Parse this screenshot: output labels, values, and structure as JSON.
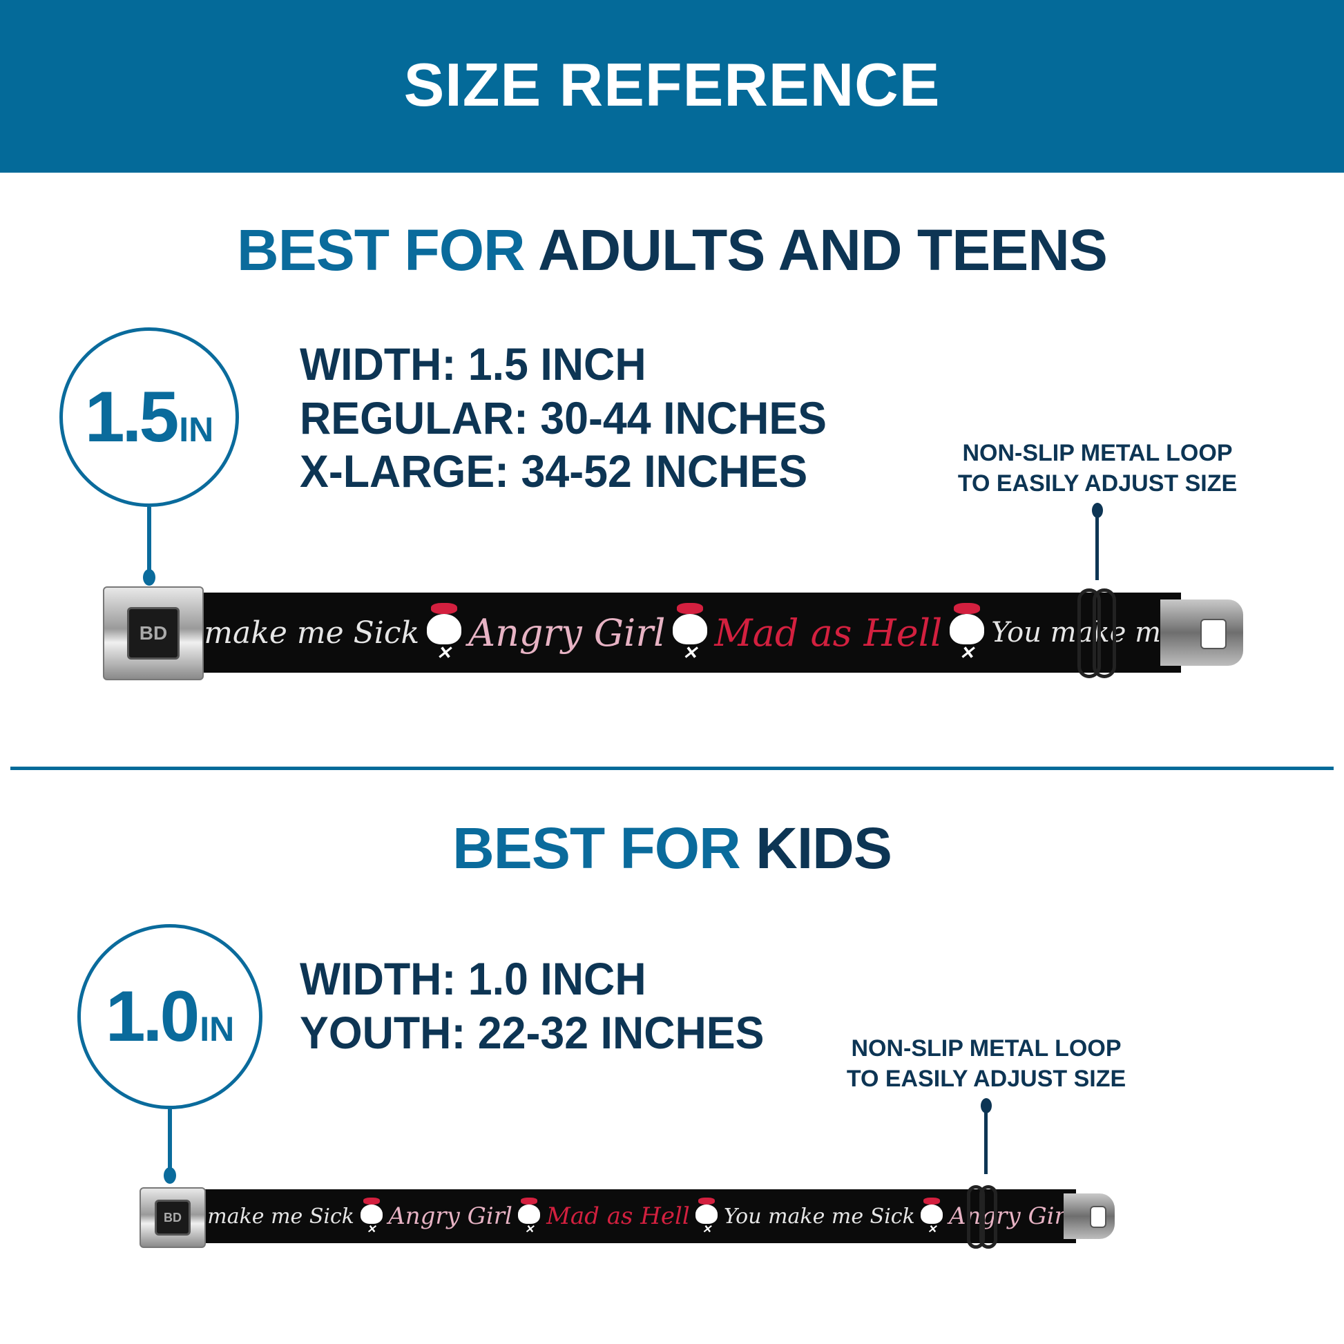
{
  "header": {
    "title": "SIZE REFERENCE",
    "color": "#046a99"
  },
  "colors": {
    "accent": "#0a6b9c",
    "dark": "#0d3554",
    "strap": "#0b0b0b",
    "pattern_red": "#d3203f",
    "pattern_pink": "#e7b3c4"
  },
  "adults": {
    "title_accent": "BEST FOR",
    "title_main": "ADULTS AND TEENS",
    "badge_number": "1.5",
    "badge_unit": "IN",
    "specs": [
      "WIDTH: 1.5 INCH",
      "REGULAR: 30-44 INCHES",
      "X-LARGE: 34-52 INCHES"
    ],
    "note": [
      "NON-SLIP METAL LOOP",
      "TO EASILY ADJUST SIZE"
    ],
    "buckle_logo": "BD",
    "pattern": [
      "make me Sick",
      "Angry Girl",
      "Mad as Hell",
      "You make me"
    ]
  },
  "kids": {
    "title_accent": "BEST FOR",
    "title_main": "KIDS",
    "badge_number": "1.0",
    "badge_unit": "IN",
    "specs": [
      "WIDTH: 1.0 INCH",
      "YOUTH: 22-32 INCHES"
    ],
    "note": [
      "NON-SLIP METAL LOOP",
      "TO EASILY ADJUST SIZE"
    ],
    "buckle_logo": "BD",
    "pattern": [
      "make me Sick",
      "Angry Girl",
      "Mad as Hell",
      "You make me Sick",
      "Angry Girl"
    ]
  }
}
